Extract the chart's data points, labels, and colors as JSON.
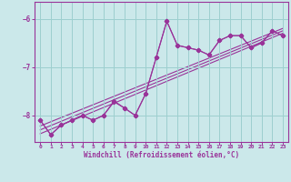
{
  "xlabel": "Windchill (Refroidissement éolien,°C)",
  "background_color": "#cbe8ea",
  "grid_color": "#9dcfcf",
  "line_color": "#993399",
  "spine_color": "#993399",
  "xlim": [
    -0.5,
    23.5
  ],
  "ylim": [
    -8.55,
    -5.65
  ],
  "yticks": [
    -8,
    -7,
    -6
  ],
  "xticks": [
    0,
    1,
    2,
    3,
    4,
    5,
    6,
    7,
    8,
    9,
    10,
    11,
    12,
    13,
    14,
    15,
    16,
    17,
    18,
    19,
    20,
    21,
    22,
    23
  ],
  "series1_x": [
    0,
    1,
    2,
    3,
    4,
    5,
    6,
    7,
    8,
    9,
    10,
    11,
    12,
    13,
    14,
    15,
    16,
    17,
    18,
    19,
    20,
    21,
    22,
    23
  ],
  "series1_y": [
    -8.1,
    -8.4,
    -8.2,
    -8.1,
    -8.0,
    -8.1,
    -8.0,
    -7.7,
    -7.85,
    -8.0,
    -7.55,
    -6.8,
    -6.05,
    -6.55,
    -6.6,
    -6.65,
    -6.75,
    -6.45,
    -6.35,
    -6.35,
    -6.6,
    -6.5,
    -6.25,
    -6.35
  ],
  "series2_x": [
    0,
    1,
    2,
    3,
    4,
    5,
    6,
    7,
    8,
    9,
    10,
    11,
    12,
    13,
    14,
    15,
    16,
    17,
    18,
    19,
    20,
    21,
    22,
    23
  ],
  "series2_y": [
    -8.1,
    -8.4,
    -8.2,
    -8.1,
    -8.0,
    -8.1,
    -8.0,
    -7.72,
    -7.85,
    -8.0,
    -7.55,
    -6.8,
    -6.05,
    -6.55,
    -6.6,
    -6.65,
    -6.75,
    -6.45,
    -6.35,
    -6.35,
    -6.6,
    -6.5,
    -6.25,
    -6.35
  ],
  "regression_lines": [
    {
      "x0": 0,
      "y0": -8.3,
      "x1": 23,
      "y1": -6.25
    },
    {
      "x0": 0,
      "y0": -8.38,
      "x1": 23,
      "y1": -6.3
    },
    {
      "x0": 0,
      "y0": -8.22,
      "x1": 23,
      "y1": -6.2
    }
  ]
}
